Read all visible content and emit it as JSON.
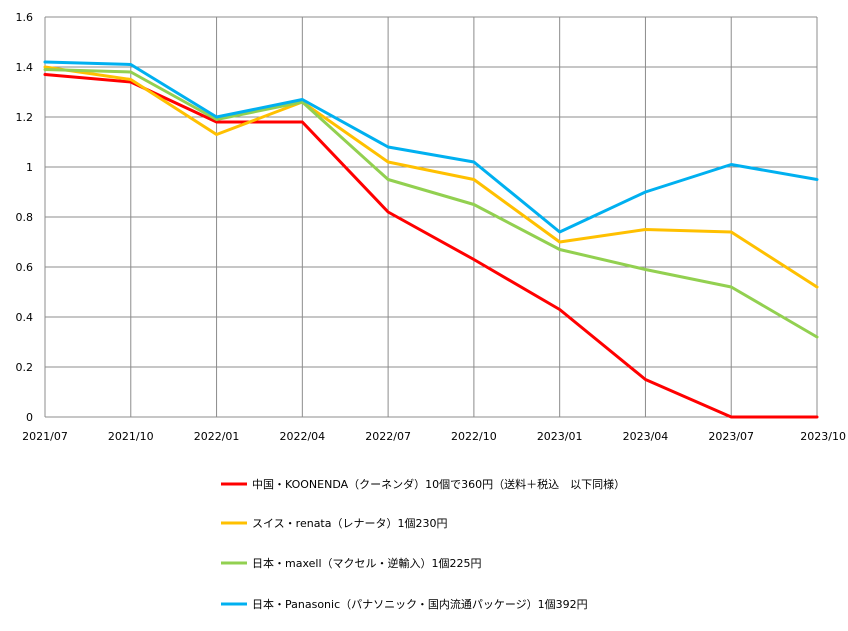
{
  "chart_data": {
    "type": "line",
    "x": [
      "2021/07",
      "2021/10",
      "2022/01",
      "2022/04",
      "2022/07",
      "2022/10",
      "2023/01",
      "2023/04",
      "2023/07",
      "2023/10"
    ],
    "ylim": [
      0,
      1.6
    ],
    "yticks": [
      "0",
      "0.2",
      "0.4",
      "0.6",
      "0.8",
      "1",
      "1.2",
      "1.4",
      "1.6"
    ],
    "grid": true,
    "legend_position": "bottom",
    "series": [
      {
        "name": "中国・KOONENDA（クーネンダ）10個で360円（送料＋税込　以下同様）",
        "color": "#ff0000",
        "values": [
          1.37,
          1.34,
          1.18,
          1.18,
          0.82,
          0.63,
          0.43,
          0.15,
          0.0,
          0.0
        ]
      },
      {
        "name": "スイス・renata（レナータ）1個230円",
        "color": "#ffc000",
        "values": [
          1.4,
          1.35,
          1.13,
          1.26,
          1.02,
          0.95,
          0.7,
          0.75,
          0.74,
          0.52
        ]
      },
      {
        "name": "日本・maxell（マクセル・逆輸入）1個225円",
        "color": "#92d050",
        "values": [
          1.39,
          1.38,
          1.19,
          1.26,
          0.95,
          0.85,
          0.67,
          0.59,
          0.52,
          0.32
        ]
      },
      {
        "name": "日本・Panasonic（パナソニック・国内流通パッケージ）1個392円",
        "color": "#00b0f0",
        "values": [
          1.42,
          1.41,
          1.2,
          1.27,
          1.08,
          1.02,
          0.74,
          0.9,
          1.01,
          0.95
        ]
      }
    ]
  }
}
